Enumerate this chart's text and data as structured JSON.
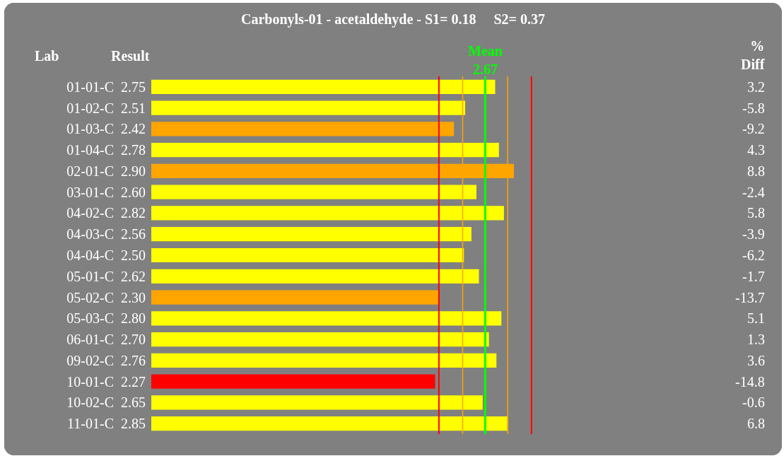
{
  "chart_data": {
    "type": "bar",
    "orientation": "horizontal",
    "title": "Carbonyls-01 - acetaldehyde - S1= 0.18     S2= 0.37",
    "ylabel": "Lab",
    "xlabel": "Result",
    "categories": [
      "01-01-C",
      "01-02-C",
      "01-03-C",
      "01-04-C",
      "02-01-C",
      "03-01-C",
      "04-02-C",
      "04-03-C",
      "04-04-C",
      "05-01-C",
      "05-02-C",
      "05-03-C",
      "06-01-C",
      "09-02-C",
      "10-01-C",
      "10-02-C",
      "11-01-C"
    ],
    "values": [
      2.75,
      2.51,
      2.42,
      2.78,
      2.9,
      2.6,
      2.82,
      2.56,
      2.5,
      2.62,
      2.3,
      2.8,
      2.7,
      2.76,
      2.27,
      2.65,
      2.85
    ],
    "value_labels": [
      "2.75",
      "2.51",
      "2.42",
      "2.78",
      "2.90",
      "2.60",
      "2.82",
      "2.56",
      "2.50",
      "2.62",
      "2.30",
      "2.80",
      "2.70",
      "2.76",
      "2.27",
      "2.65",
      "2.85"
    ],
    "colors": [
      "#ffff00",
      "#ffff00",
      "#ffa500",
      "#ffff00",
      "#ffa500",
      "#ffff00",
      "#ffff00",
      "#ffff00",
      "#ffff00",
      "#ffff00",
      "#ffa500",
      "#ffff00",
      "#ffff00",
      "#ffff00",
      "#ff0000",
      "#ffff00",
      "#ffff00"
    ],
    "tick_labels": "y",
    "ref_lines": [
      {
        "axis": "x",
        "value": 2.3,
        "color": "#ff0000"
      },
      {
        "axis": "x",
        "value": 2.49,
        "color": "#ffa500"
      },
      {
        "axis": "x",
        "value": 2.67,
        "label": "Mean 2.67",
        "color": "#00ff00"
      },
      {
        "axis": "x",
        "value": 2.85,
        "color": "#ffa500"
      },
      {
        "axis": "x",
        "value": 3.04,
        "color": "#ff0000"
      }
    ],
    "annotations": [
      "% Diff",
      "3.2",
      "-5.8",
      "-9.2",
      "4.3",
      "8.8",
      "-2.4",
      "5.8",
      "-3.9",
      "-6.2",
      "-1.7",
      "-13.7",
      "5.1",
      "1.3",
      "3.6",
      "-14.8",
      "-0.6",
      "6.8"
    ]
  }
}
